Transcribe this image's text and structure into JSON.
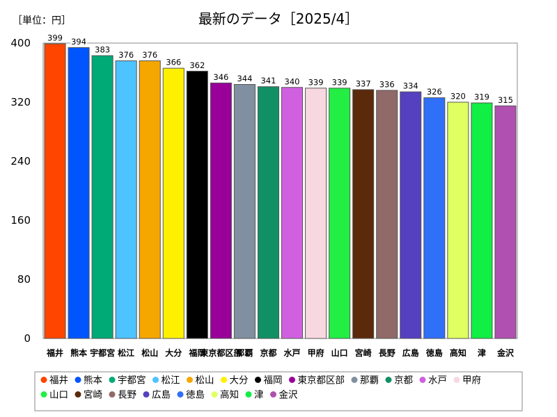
{
  "unit_label": "［単位：円］",
  "chart_data": {
    "type": "bar",
    "title": "最新のデータ［2025/4］",
    "xlabel": "",
    "ylabel": "",
    "ylim": [
      0,
      400
    ],
    "yticks": [
      0,
      80,
      160,
      240,
      320,
      400
    ],
    "grid": false,
    "legend_position": "bottom",
    "categories": [
      "福井",
      "熊本",
      "宇都宮",
      "松江",
      "松山",
      "大分",
      "福岡",
      "東京都区部",
      "那覇",
      "京都",
      "水戸",
      "甲府",
      "山口",
      "宮崎",
      "長野",
      "広島",
      "徳島",
      "高知",
      "津",
      "金沢"
    ],
    "values": [
      399,
      394,
      383,
      376,
      376,
      366,
      362,
      346,
      344,
      341,
      340,
      339,
      339,
      337,
      336,
      334,
      326,
      320,
      319,
      315
    ],
    "colors": [
      "#FF4500",
      "#0055FF",
      "#00AA77",
      "#4DC3FF",
      "#F5A700",
      "#FFF000",
      "#000000",
      "#990099",
      "#8090A0",
      "#119066",
      "#D060E0",
      "#F8D8E0",
      "#22EE44",
      "#5B2A0A",
      "#906A68",
      "#5540C0",
      "#3070F8",
      "#E0FF60",
      "#11EE44",
      "#B050B0"
    ]
  }
}
